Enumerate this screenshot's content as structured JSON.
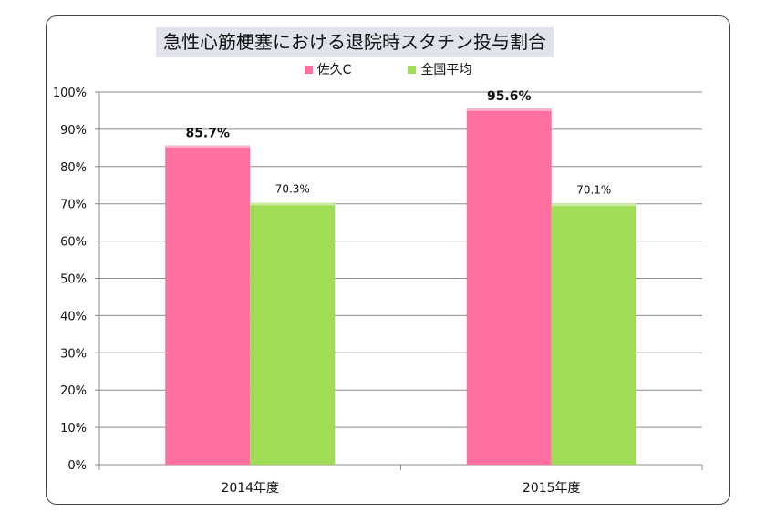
{
  "chart_data": {
    "type": "bar",
    "title": "急性心筋梗塞における退院時スタチン投与割合",
    "categories": [
      "2014年度",
      "2015年度"
    ],
    "series": [
      {
        "name": "佐久C",
        "values": [
          85.7,
          95.6
        ],
        "labels": [
          "85.7%",
          "95.6%"
        ],
        "color": "#ff6fa0",
        "label_bold": true
      },
      {
        "name": "全国平均",
        "values": [
          70.3,
          70.1
        ],
        "labels": [
          "70.3%",
          "70.1%"
        ],
        "color": "#a0dc55",
        "label_bold": false
      }
    ],
    "ylim": [
      0,
      100
    ],
    "yticks": [
      "0%",
      "10%",
      "20%",
      "30%",
      "40%",
      "50%",
      "60%",
      "70%",
      "80%",
      "90%",
      "100%"
    ],
    "grid": true,
    "legend": "top"
  }
}
